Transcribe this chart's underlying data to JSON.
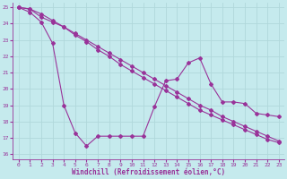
{
  "xlabel": "Windchill (Refroidissement éolien,°C)",
  "bg_color": "#c5eaed",
  "line_color": "#993399",
  "grid_color": "#b0d8db",
  "xlim": [
    -0.5,
    23.5
  ],
  "ylim": [
    15.7,
    25.3
  ],
  "yticks": [
    16,
    17,
    18,
    19,
    20,
    21,
    22,
    23,
    24,
    25
  ],
  "xticks": [
    0,
    1,
    2,
    3,
    4,
    5,
    6,
    7,
    8,
    9,
    10,
    11,
    12,
    13,
    14,
    15,
    16,
    17,
    18,
    19,
    20,
    21,
    22,
    23
  ],
  "series": [
    {
      "x": [
        0,
        1,
        2,
        3,
        4,
        5,
        6,
        7,
        8,
        9,
        10,
        11,
        12,
        13,
        14,
        15,
        16,
        17,
        18,
        19,
        20,
        21,
        22,
        23
      ],
      "y": [
        25.0,
        24.9,
        24.6,
        24.2,
        23.8,
        23.4,
        23.0,
        22.6,
        22.2,
        21.8,
        21.4,
        21.0,
        20.6,
        20.2,
        19.8,
        19.4,
        19.0,
        18.7,
        18.3,
        18.0,
        17.7,
        17.4,
        17.1,
        16.8
      ]
    },
    {
      "x": [
        0,
        1,
        2,
        3,
        4,
        5,
        6,
        7,
        8,
        9,
        10,
        11,
        12,
        13,
        14,
        15,
        16,
        17,
        18,
        19,
        20,
        21,
        22,
        23
      ],
      "y": [
        25.0,
        24.9,
        24.4,
        24.1,
        23.8,
        23.3,
        22.9,
        22.4,
        22.0,
        21.5,
        21.1,
        20.7,
        20.3,
        19.9,
        19.5,
        19.1,
        18.7,
        18.4,
        18.1,
        17.8,
        17.5,
        17.2,
        16.9,
        16.7
      ]
    },
    {
      "x": [
        0,
        1,
        2,
        3,
        4,
        5,
        6,
        7,
        8,
        9,
        10,
        11,
        12,
        13,
        14,
        15,
        16,
        17,
        18,
        19,
        20,
        21,
        22,
        23
      ],
      "y": [
        25.0,
        24.7,
        24.1,
        22.8,
        19.0,
        17.3,
        16.5,
        17.1,
        17.1,
        17.1,
        17.1,
        17.1,
        18.9,
        20.5,
        20.6,
        21.6,
        21.9,
        20.3,
        19.2,
        19.2,
        19.1,
        18.5,
        18.4,
        18.3
      ]
    }
  ]
}
